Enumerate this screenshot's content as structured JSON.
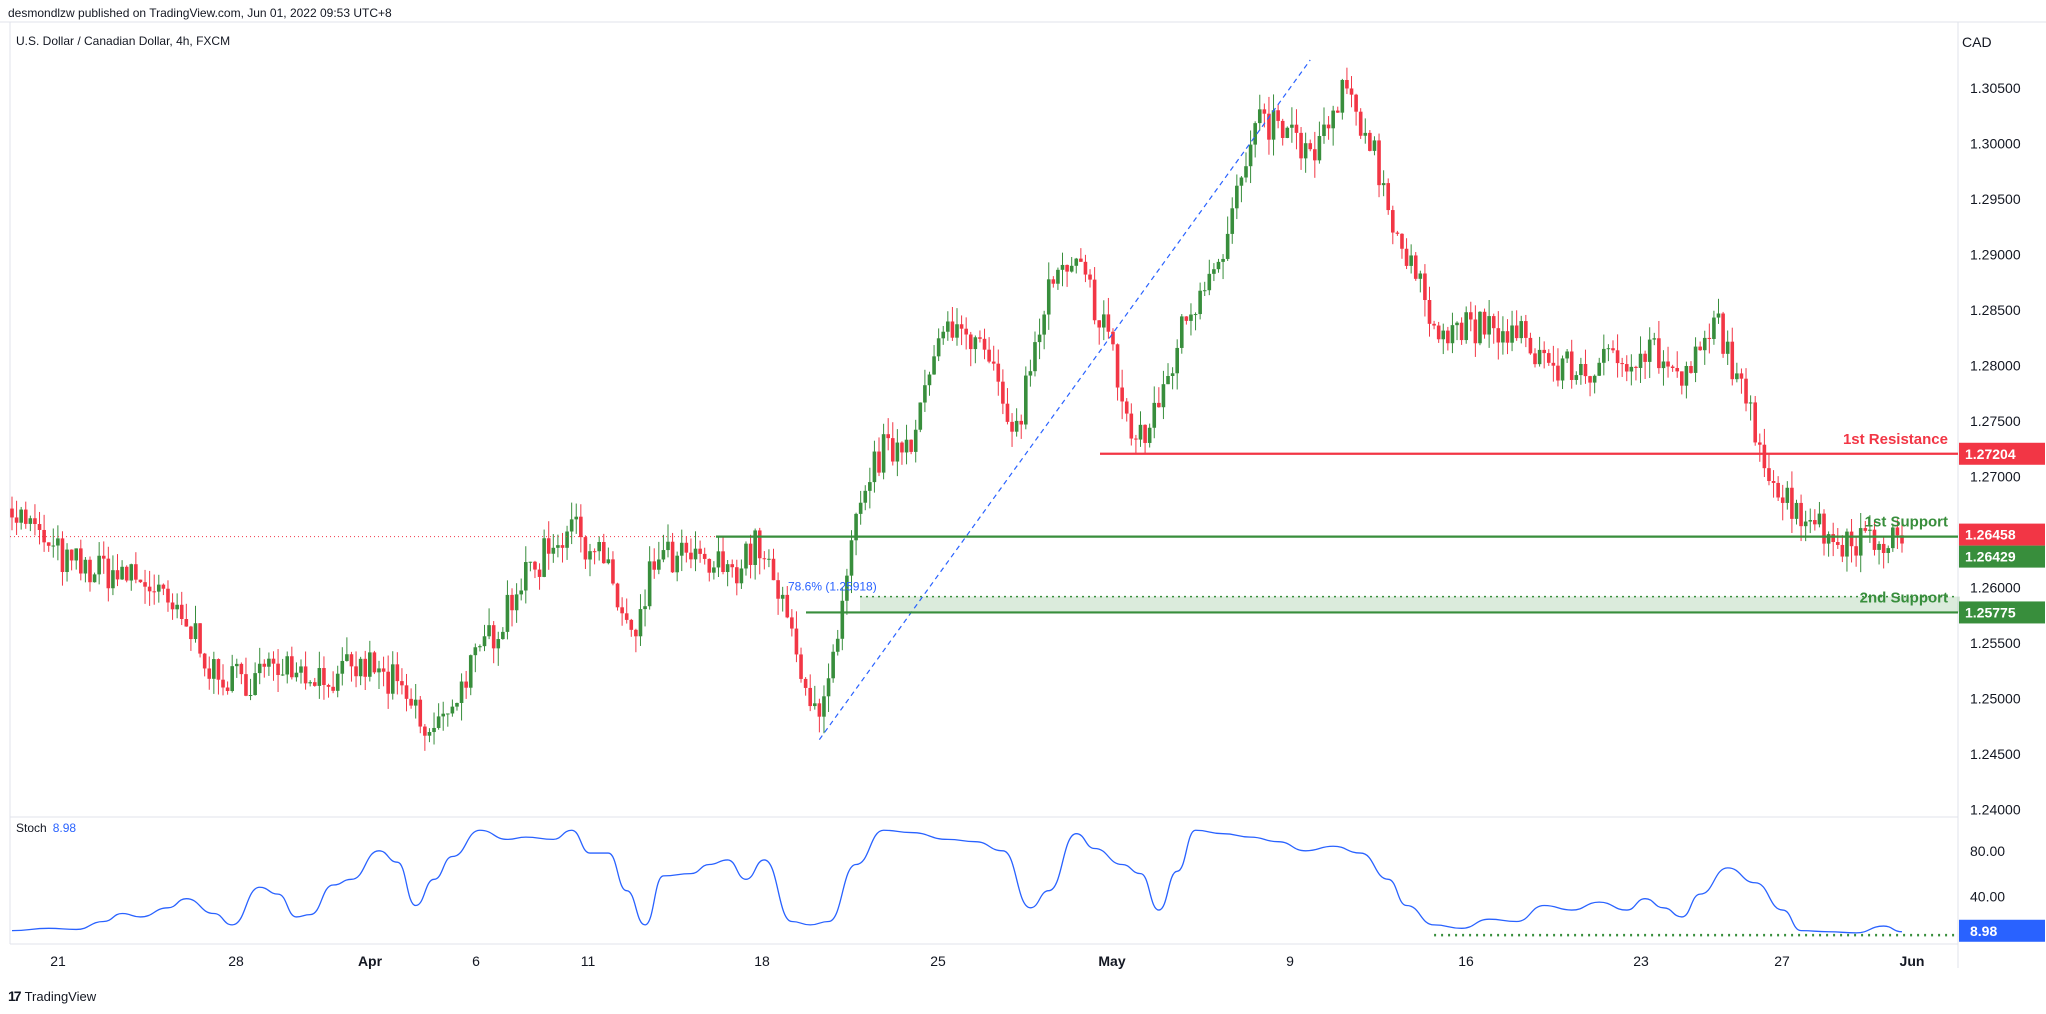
{
  "header": {
    "published": "desmondlzw published on TradingView.com, Jun 01, 2022 09:53 UTC+8"
  },
  "symbol": {
    "title": "U.S. Dollar / Canadian Dollar, 4h, FXCM"
  },
  "currency": "CAD",
  "footer": {
    "brand": "TradingView",
    "logo_text": "17"
  },
  "stoch": {
    "label": "Stoch",
    "value": "8.98"
  },
  "chart_data": [
    {
      "type": "candlestick",
      "title": "U.S. Dollar / Canadian Dollar, 4h, FXCM",
      "y_ticks": [
        "1.30500",
        "1.30000",
        "1.29500",
        "1.29000",
        "1.28500",
        "1.28000",
        "1.27500",
        "1.27000",
        "1.26500",
        "1.26000",
        "1.25500",
        "1.25000",
        "1.24500",
        "1.24000"
      ],
      "ylim": [
        1.2395,
        1.31
      ],
      "x_ticks": [
        "21",
        "28",
        "Apr",
        "6",
        "11",
        "18",
        "25",
        "May",
        "9",
        "16",
        "23",
        "27",
        "Jun"
      ],
      "grid": false,
      "price_anchors": [
        {
          "t": 0,
          "p": 1.2672
        },
        {
          "t": 12,
          "p": 1.262
        },
        {
          "t": 28,
          "p": 1.261
        },
        {
          "t": 40,
          "p": 1.2555
        },
        {
          "t": 46,
          "p": 1.251
        },
        {
          "t": 58,
          "p": 1.2532
        },
        {
          "t": 70,
          "p": 1.2515
        },
        {
          "t": 78,
          "p": 1.253
        },
        {
          "t": 86,
          "p": 1.25
        },
        {
          "t": 91,
          "p": 1.2465
        },
        {
          "t": 100,
          "p": 1.2525
        },
        {
          "t": 110,
          "p": 1.26
        },
        {
          "t": 122,
          "p": 1.266
        },
        {
          "t": 128,
          "p": 1.263
        },
        {
          "t": 136,
          "p": 1.2545
        },
        {
          "t": 140,
          "p": 1.2625
        },
        {
          "t": 148,
          "p": 1.2625
        },
        {
          "t": 156,
          "p": 1.2615
        },
        {
          "t": 163,
          "p": 1.264
        },
        {
          "t": 168,
          "p": 1.258
        },
        {
          "t": 176,
          "p": 1.2478
        },
        {
          "t": 180,
          "p": 1.255
        },
        {
          "t": 184,
          "p": 1.2655
        },
        {
          "t": 188,
          "p": 1.2715
        },
        {
          "t": 196,
          "p": 1.274
        },
        {
          "t": 204,
          "p": 1.2835
        },
        {
          "t": 212,
          "p": 1.283
        },
        {
          "t": 218,
          "p": 1.273
        },
        {
          "t": 226,
          "p": 1.2865
        },
        {
          "t": 232,
          "p": 1.289
        },
        {
          "t": 238,
          "p": 1.284
        },
        {
          "t": 244,
          "p": 1.2735
        },
        {
          "t": 248,
          "p": 1.274
        },
        {
          "t": 256,
          "p": 1.2845
        },
        {
          "t": 264,
          "p": 1.291
        },
        {
          "t": 272,
          "p": 1.302
        },
        {
          "t": 278,
          "p": 1.301
        },
        {
          "t": 284,
          "p": 1.2985
        },
        {
          "t": 290,
          "p": 1.3045
        },
        {
          "t": 296,
          "p": 1.3005
        },
        {
          "t": 304,
          "p": 1.289
        },
        {
          "t": 312,
          "p": 1.283
        },
        {
          "t": 320,
          "p": 1.2835
        },
        {
          "t": 328,
          "p": 1.2825
        },
        {
          "t": 336,
          "p": 1.28
        },
        {
          "t": 344,
          "p": 1.2795
        },
        {
          "t": 352,
          "p": 1.281
        },
        {
          "t": 358,
          "p": 1.2815
        },
        {
          "t": 364,
          "p": 1.278
        },
        {
          "t": 372,
          "p": 1.284
        },
        {
          "t": 378,
          "p": 1.276
        },
        {
          "t": 386,
          "p": 1.268
        },
        {
          "t": 392,
          "p": 1.2665
        },
        {
          "t": 396,
          "p": 1.2645
        }
      ],
      "levels": [
        {
          "label": "1st Resistance",
          "price": 1.27204,
          "price_label": "1.27204",
          "color": "#f23645"
        },
        {
          "label": "1st Support",
          "price": 1.26458,
          "price_label": "1.26458",
          "color": "#388e3c"
        },
        {
          "label": "2nd Support",
          "price": 1.25775,
          "price_label": "1.25775",
          "color": "#388e3c"
        }
      ],
      "last_price_label": "1.26458",
      "last_price_color": "#f23645",
      "current_price_label": "1.26429",
      "fib": {
        "label": "78.6% (1.25918)",
        "price": 1.25918
      },
      "trendline": {
        "from": {
          "t": 176,
          "p": 1.2463
        },
        "to": {
          "t": 283,
          "p": 1.3075
        }
      }
    },
    {
      "type": "line",
      "name": "Stoch",
      "y_ticks": [
        "80.00",
        "40.00"
      ],
      "ylim": [
        0,
        110
      ],
      "last_value": 8.98,
      "last_value_label": "8.98",
      "line_color": "#2962ff",
      "oversold_line": 6.0,
      "anchors": [
        {
          "t": 0,
          "v": 10
        },
        {
          "t": 8,
          "v": 12
        },
        {
          "t": 14,
          "v": 11
        },
        {
          "t": 20,
          "v": 18
        },
        {
          "t": 24,
          "v": 25
        },
        {
          "t": 28,
          "v": 22
        },
        {
          "t": 34,
          "v": 30
        },
        {
          "t": 38,
          "v": 38
        },
        {
          "t": 44,
          "v": 25
        },
        {
          "t": 48,
          "v": 15
        },
        {
          "t": 54,
          "v": 48
        },
        {
          "t": 58,
          "v": 42
        },
        {
          "t": 62,
          "v": 22
        },
        {
          "t": 65,
          "v": 24
        },
        {
          "t": 70,
          "v": 50
        },
        {
          "t": 74,
          "v": 55
        },
        {
          "t": 80,
          "v": 80
        },
        {
          "t": 84,
          "v": 70
        },
        {
          "t": 88,
          "v": 32
        },
        {
          "t": 92,
          "v": 55
        },
        {
          "t": 96,
          "v": 75
        },
        {
          "t": 102,
          "v": 98
        },
        {
          "t": 108,
          "v": 90
        },
        {
          "t": 112,
          "v": 92
        },
        {
          "t": 118,
          "v": 90
        },
        {
          "t": 122,
          "v": 98
        },
        {
          "t": 126,
          "v": 78
        },
        {
          "t": 130,
          "v": 78
        },
        {
          "t": 134,
          "v": 45
        },
        {
          "t": 138,
          "v": 15
        },
        {
          "t": 142,
          "v": 58
        },
        {
          "t": 148,
          "v": 60
        },
        {
          "t": 152,
          "v": 68
        },
        {
          "t": 156,
          "v": 72
        },
        {
          "t": 160,
          "v": 55
        },
        {
          "t": 164,
          "v": 72
        },
        {
          "t": 170,
          "v": 18
        },
        {
          "t": 174,
          "v": 15
        },
        {
          "t": 178,
          "v": 18
        },
        {
          "t": 184,
          "v": 68
        },
        {
          "t": 190,
          "v": 98
        },
        {
          "t": 196,
          "v": 96
        },
        {
          "t": 204,
          "v": 90
        },
        {
          "t": 210,
          "v": 88
        },
        {
          "t": 216,
          "v": 80
        },
        {
          "t": 222,
          "v": 30
        },
        {
          "t": 226,
          "v": 45
        },
        {
          "t": 232,
          "v": 95
        },
        {
          "t": 236,
          "v": 82
        },
        {
          "t": 242,
          "v": 68
        },
        {
          "t": 246,
          "v": 60
        },
        {
          "t": 250,
          "v": 28
        },
        {
          "t": 254,
          "v": 62
        },
        {
          "t": 258,
          "v": 98
        },
        {
          "t": 264,
          "v": 95
        },
        {
          "t": 270,
          "v": 92
        },
        {
          "t": 276,
          "v": 88
        },
        {
          "t": 282,
          "v": 80
        },
        {
          "t": 288,
          "v": 84
        },
        {
          "t": 294,
          "v": 78
        },
        {
          "t": 300,
          "v": 55
        },
        {
          "t": 304,
          "v": 32
        },
        {
          "t": 310,
          "v": 15
        },
        {
          "t": 316,
          "v": 12
        },
        {
          "t": 322,
          "v": 20
        },
        {
          "t": 328,
          "v": 18
        },
        {
          "t": 334,
          "v": 32
        },
        {
          "t": 340,
          "v": 28
        },
        {
          "t": 346,
          "v": 35
        },
        {
          "t": 352,
          "v": 28
        },
        {
          "t": 356,
          "v": 38
        },
        {
          "t": 360,
          "v": 30
        },
        {
          "t": 364,
          "v": 22
        },
        {
          "t": 368,
          "v": 42
        },
        {
          "t": 374,
          "v": 65
        },
        {
          "t": 380,
          "v": 52
        },
        {
          "t": 386,
          "v": 28
        },
        {
          "t": 390,
          "v": 10
        },
        {
          "t": 396,
          "v": 9
        },
        {
          "t": 402,
          "v": 8
        },
        {
          "t": 408,
          "v": 14
        },
        {
          "t": 412,
          "v": 9
        }
      ]
    }
  ]
}
